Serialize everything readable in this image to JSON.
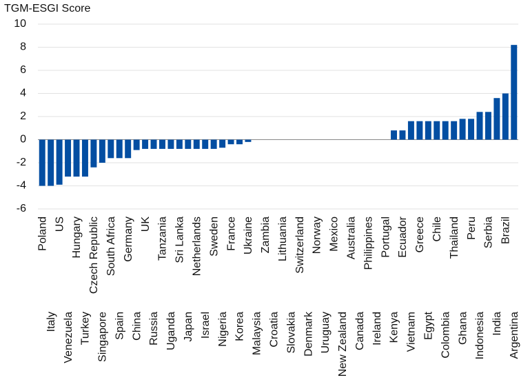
{
  "chart_data": {
    "type": "bar",
    "title": "TGM-ESGI Score",
    "categories": [
      "Poland",
      "Italy",
      "US",
      "Venezuela",
      "Hungary",
      "Turkey",
      "Czech Republic",
      "Singapore",
      "South Africa",
      "Spain",
      "Germany",
      "China",
      "UK",
      "Russia",
      "Tanzania",
      "Uganda",
      "Sri Lanka",
      "Japan",
      "Netherlands",
      "Israel",
      "Sweden",
      "Nigeria",
      "France",
      "Korea",
      "Ukraine",
      "Malaysia",
      "Zambia",
      "Croatia",
      "Lithuania",
      "Slovakia",
      "Switzerland",
      "Denmark",
      "Norway",
      "Uruguay",
      "Mexico",
      "New Zealand",
      "Australia",
      "Canada",
      "Philippines",
      "Ireland",
      "Portugal",
      "Kenya",
      "Ecuador",
      "Vietnam",
      "Greece",
      "Egypt",
      "Chile",
      "Colombia",
      "Thailand",
      "Ghana",
      "Peru",
      "Indonesia",
      "Serbia",
      "India",
      "Brazil",
      "Argentina"
    ],
    "values": [
      -4,
      -4,
      -3.9,
      -3.2,
      -3.2,
      -3.2,
      -2.4,
      -2,
      -1.6,
      -1.6,
      -1.6,
      -0.9,
      -0.8,
      -0.8,
      -0.8,
      -0.8,
      -0.8,
      -0.8,
      -0.8,
      -0.8,
      -0.8,
      -0.7,
      -0.4,
      -0.4,
      -0.2,
      0,
      0,
      0,
      0,
      0,
      0,
      0,
      0,
      0,
      0,
      0,
      0,
      0,
      0,
      0,
      0,
      0.8,
      0.8,
      1.6,
      1.6,
      1.6,
      1.6,
      1.6,
      1.6,
      1.8,
      1.8,
      2.4,
      2.4,
      3.6,
      4,
      8.2
    ],
    "color": "#034ea2",
    "ylim": [
      -6,
      10
    ],
    "yticks": [
      -6,
      -4,
      -2,
      0,
      2,
      4,
      6,
      8,
      10
    ],
    "grid": true
  }
}
